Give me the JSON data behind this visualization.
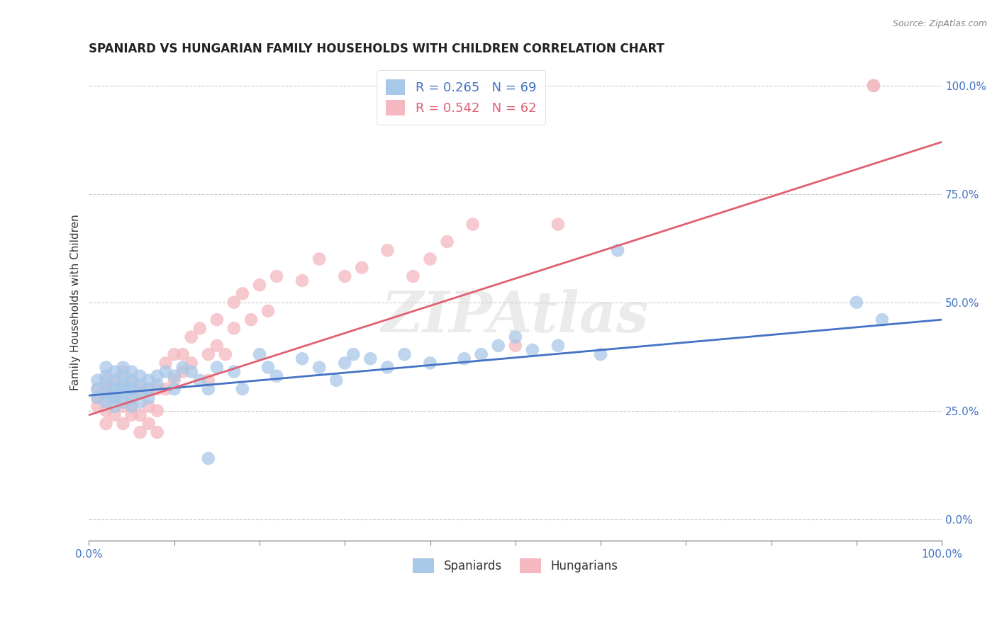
{
  "title": "SPANIARD VS HUNGARIAN FAMILY HOUSEHOLDS WITH CHILDREN CORRELATION CHART",
  "source": "Source: ZipAtlas.com",
  "ylabel": "Family Households with Children",
  "xlim": [
    0.0,
    1.0
  ],
  "ylim": [
    -0.05,
    1.05
  ],
  "yticks": [
    0.0,
    0.25,
    0.5,
    0.75,
    1.0
  ],
  "ytick_labels": [
    "0.0%",
    "25.0%",
    "50.0%",
    "75.0%",
    "100.0%"
  ],
  "xtick_labels_edge": [
    "0.0%",
    "100.0%"
  ],
  "watermark": "ZIPAtlas",
  "spaniards_color": "#a8c8e8",
  "hungarians_color": "#f4b8c0",
  "spaniards_line_color": "#4472c4",
  "hungarians_line_color": "#e06070",
  "legend_spaniards_r": "R = 0.265",
  "legend_spaniards_n": "N = 69",
  "legend_hungarians_r": "R = 0.542",
  "legend_hungarians_n": "N = 62",
  "title_fontsize": 12,
  "axis_label_fontsize": 11,
  "tick_fontsize": 11,
  "background_color": "#ffffff",
  "spaniards_x": [
    0.01,
    0.01,
    0.01,
    0.02,
    0.02,
    0.02,
    0.02,
    0.02,
    0.03,
    0.03,
    0.03,
    0.03,
    0.03,
    0.03,
    0.03,
    0.04,
    0.04,
    0.04,
    0.04,
    0.04,
    0.04,
    0.05,
    0.05,
    0.05,
    0.05,
    0.05,
    0.05,
    0.06,
    0.06,
    0.06,
    0.06,
    0.07,
    0.07,
    0.07,
    0.08,
    0.08,
    0.09,
    0.1,
    0.1,
    0.11,
    0.12,
    0.13,
    0.14,
    0.14,
    0.15,
    0.17,
    0.18,
    0.2,
    0.21,
    0.22,
    0.25,
    0.27,
    0.29,
    0.3,
    0.31,
    0.33,
    0.35,
    0.37,
    0.4,
    0.44,
    0.46,
    0.48,
    0.5,
    0.52,
    0.55,
    0.6,
    0.62,
    0.9,
    0.93
  ],
  "spaniards_y": [
    0.28,
    0.32,
    0.3,
    0.29,
    0.31,
    0.33,
    0.27,
    0.35,
    0.3,
    0.28,
    0.32,
    0.26,
    0.34,
    0.3,
    0.28,
    0.31,
    0.29,
    0.33,
    0.27,
    0.3,
    0.35,
    0.32,
    0.28,
    0.3,
    0.26,
    0.34,
    0.3,
    0.31,
    0.29,
    0.33,
    0.27,
    0.3,
    0.28,
    0.32,
    0.33,
    0.31,
    0.34,
    0.33,
    0.3,
    0.35,
    0.34,
    0.32,
    0.3,
    0.14,
    0.35,
    0.34,
    0.3,
    0.38,
    0.35,
    0.33,
    0.37,
    0.35,
    0.32,
    0.36,
    0.38,
    0.37,
    0.35,
    0.38,
    0.36,
    0.37,
    0.38,
    0.4,
    0.42,
    0.39,
    0.4,
    0.38,
    0.62,
    0.5,
    0.46
  ],
  "hungarians_x": [
    0.01,
    0.01,
    0.01,
    0.02,
    0.02,
    0.02,
    0.02,
    0.02,
    0.03,
    0.03,
    0.03,
    0.04,
    0.04,
    0.04,
    0.04,
    0.05,
    0.05,
    0.05,
    0.05,
    0.06,
    0.06,
    0.06,
    0.07,
    0.07,
    0.07,
    0.08,
    0.08,
    0.08,
    0.09,
    0.09,
    0.1,
    0.1,
    0.11,
    0.11,
    0.12,
    0.12,
    0.13,
    0.14,
    0.14,
    0.15,
    0.15,
    0.16,
    0.17,
    0.17,
    0.18,
    0.19,
    0.2,
    0.21,
    0.22,
    0.25,
    0.27,
    0.3,
    0.32,
    0.35,
    0.38,
    0.4,
    0.42,
    0.45,
    0.5,
    0.55,
    0.92,
    0.92
  ],
  "hungarians_y": [
    0.28,
    0.26,
    0.3,
    0.28,
    0.25,
    0.32,
    0.22,
    0.3,
    0.28,
    0.24,
    0.32,
    0.26,
    0.3,
    0.22,
    0.34,
    0.28,
    0.24,
    0.32,
    0.26,
    0.3,
    0.24,
    0.2,
    0.3,
    0.26,
    0.22,
    0.3,
    0.25,
    0.2,
    0.36,
    0.3,
    0.38,
    0.32,
    0.38,
    0.34,
    0.42,
    0.36,
    0.44,
    0.38,
    0.32,
    0.4,
    0.46,
    0.38,
    0.5,
    0.44,
    0.52,
    0.46,
    0.54,
    0.48,
    0.56,
    0.55,
    0.6,
    0.56,
    0.58,
    0.62,
    0.56,
    0.6,
    0.64,
    0.68,
    0.4,
    0.68,
    1.0,
    1.0
  ],
  "spaniards_line": {
    "x0": 0.0,
    "x1": 1.0,
    "y0": 0.285,
    "y1": 0.46
  },
  "hungarians_line": {
    "x0": 0.0,
    "x1": 1.0,
    "y0": 0.24,
    "y1": 0.87
  },
  "num_xticks": 11
}
